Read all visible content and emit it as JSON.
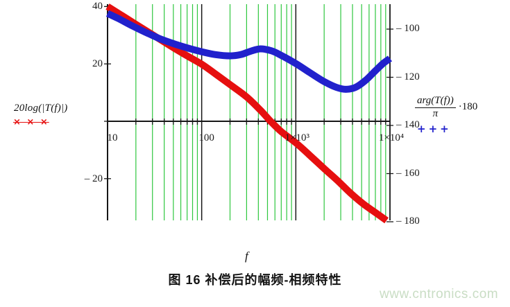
{
  "caption": "图 16 补偿后的幅频-相频特性",
  "watermark": "www.cntronics.com",
  "labels": {
    "left_axis_title": "20log(|T(f)|)",
    "magnitude_marker": "× × ×",
    "right_axis_numerator": "arg(T(f))",
    "right_axis_denominator": "π",
    "right_axis_multiplier": "·180",
    "phase_marker": "+++",
    "x_axis_title": "f"
  },
  "colors": {
    "grid_green": "#2ec73e",
    "axis_black": "#161616",
    "magnitude_red": "#e60f0f",
    "phase_blue": "#2121cc",
    "watermark_green": "#c9ddc4"
  },
  "chart_data": {
    "type": "line",
    "title": "",
    "x_axis": {
      "label": "f",
      "scale": "log",
      "min": 10,
      "max": 10000,
      "tick_values": [
        10,
        100,
        1000,
        10000
      ],
      "tick_labels": [
        "10",
        "100",
        "1×10³",
        "1×10⁴"
      ],
      "minor_gridlines": "green lines at 2-9 of each decade"
    },
    "y_left_axis": {
      "label": "20log(|T(f)|)",
      "units": "dB",
      "tick_values": [
        40,
        20,
        0,
        -20
      ],
      "tick_labels": [
        "40",
        "20",
        "",
        "– 20"
      ],
      "approx_range": [
        40.8,
        -34.5
      ]
    },
    "y_right_axis": {
      "label": "arg(T(f))/π·180",
      "units": "degrees",
      "tick_values": [
        -100,
        -120,
        -140,
        -160,
        -180
      ],
      "tick_labels": [
        "– 100",
        "– 120",
        "– 140",
        "– 160",
        "– 180"
      ],
      "approx_range": [
        -89.7,
        -180
      ]
    },
    "grid": true,
    "legend_position": "outside-left and outside-right",
    "series": [
      {
        "name": "magnitude_20log_T",
        "axis": "left",
        "color": "#e60f0f",
        "marker": "x",
        "points": [
          [
            10,
            40
          ],
          [
            14,
            37
          ],
          [
            20,
            33.8
          ],
          [
            30,
            30.2
          ],
          [
            45,
            26.6
          ],
          [
            65,
            23.4
          ],
          [
            100,
            19.9
          ],
          [
            140,
            16.5
          ],
          [
            200,
            12.8
          ],
          [
            300,
            8.5
          ],
          [
            420,
            3.9
          ],
          [
            540,
            0
          ],
          [
            700,
            -3.6
          ],
          [
            1000,
            -7.5
          ],
          [
            1400,
            -11.8
          ],
          [
            2000,
            -16.5
          ],
          [
            2800,
            -20.8
          ],
          [
            3800,
            -25
          ],
          [
            5200,
            -28.8
          ],
          [
            7000,
            -31.8
          ],
          [
            9200,
            -34.6
          ]
        ]
      },
      {
        "name": "phase_arg_T_deg",
        "axis": "right",
        "color": "#2121cc",
        "marker": "+",
        "points": [
          [
            10,
            -93.5
          ],
          [
            13,
            -95.6
          ],
          [
            18,
            -98.5
          ],
          [
            25,
            -101.2
          ],
          [
            35,
            -103.8
          ],
          [
            50,
            -106
          ],
          [
            70,
            -107.8
          ],
          [
            100,
            -109.4
          ],
          [
            140,
            -110.6
          ],
          [
            200,
            -111.1
          ],
          [
            260,
            -110.6
          ],
          [
            330,
            -109.2
          ],
          [
            420,
            -108.2
          ],
          [
            550,
            -109
          ],
          [
            700,
            -110.9
          ],
          [
            1000,
            -114.3
          ],
          [
            1400,
            -118
          ],
          [
            2000,
            -121.8
          ],
          [
            2700,
            -124.2
          ],
          [
            3400,
            -125
          ],
          [
            4300,
            -124.2
          ],
          [
            5500,
            -121.3
          ],
          [
            7000,
            -117.3
          ],
          [
            8500,
            -114.2
          ],
          [
            10000,
            -112.2
          ]
        ]
      }
    ]
  }
}
